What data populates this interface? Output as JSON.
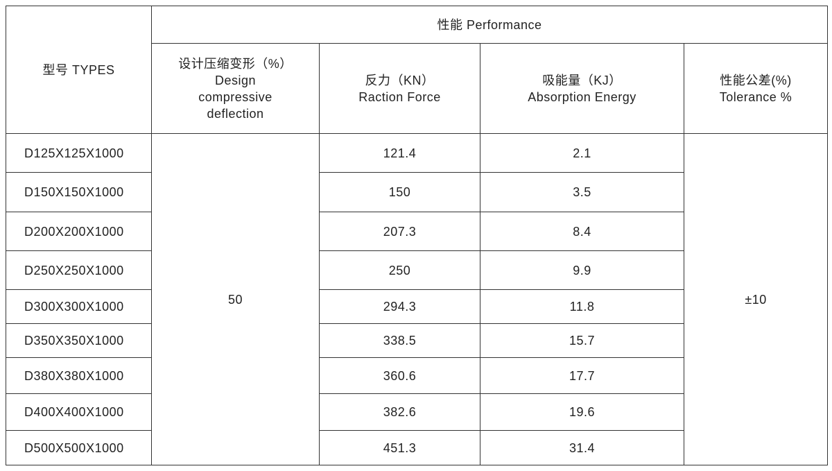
{
  "table": {
    "header": {
      "types": "型号 TYPES",
      "performance": "性能  Performance",
      "columns": [
        {
          "zh": "设计压缩变形（%）",
          "en": "Design compressive deflection"
        },
        {
          "zh": "反力（KN）",
          "en": "Raction  Force"
        },
        {
          "zh": "吸能量（KJ）",
          "en": "Absorption  Energy"
        },
        {
          "zh": "性能公差(%)",
          "en": "Tolerance %"
        }
      ]
    },
    "deflection": "50",
    "tolerance": "±10",
    "rows": [
      [
        "D125X125X1000",
        "121.4",
        "2.1"
      ],
      [
        "D150X150X1000",
        "150",
        "3.5"
      ],
      [
        "D200X200X1000",
        "207.3",
        "8.4"
      ],
      [
        "D250X250X1000",
        "250",
        "9.9"
      ],
      [
        "D300X300X1000",
        "294.3",
        "11.8"
      ],
      [
        "D350X350X1000",
        "338.5",
        "15.7"
      ],
      [
        "D380X380X1000",
        "360.6",
        "17.7"
      ],
      [
        "D400X400X1000",
        "382.6",
        "19.6"
      ],
      [
        "D500X500X1000",
        "451.3",
        "31.4"
      ]
    ]
  }
}
